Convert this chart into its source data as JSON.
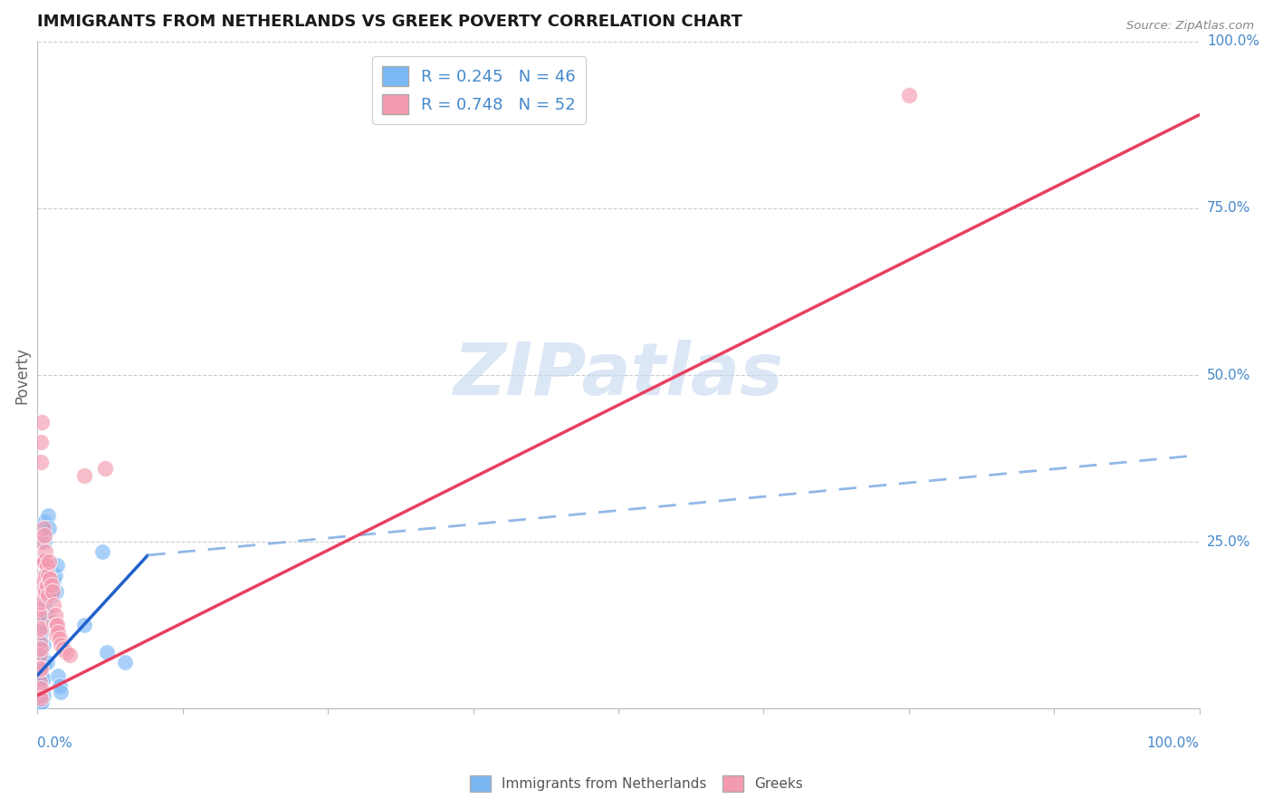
{
  "title": "IMMIGRANTS FROM NETHERLANDS VS GREEK POVERTY CORRELATION CHART",
  "source": "Source: ZipAtlas.com",
  "ylabel": "Poverty",
  "ytick_vals": [
    0.0,
    0.25,
    0.5,
    0.75,
    1.0
  ],
  "ytick_labels": [
    "",
    "25.0%",
    "50.0%",
    "75.0%",
    "100.0%"
  ],
  "xtick_left_label": "0.0%",
  "xtick_right_label": "100.0%",
  "legend_line1": "R = 0.245   N = 46",
  "legend_line2": "R = 0.748   N = 52",
  "legend_label1": "Immigrants from Netherlands",
  "legend_label2": "Greeks",
  "blue_scatter": [
    [
      0.002,
      0.13
    ],
    [
      0.003,
      0.1
    ],
    [
      0.003,
      0.08
    ],
    [
      0.003,
      0.06
    ],
    [
      0.003,
      0.05
    ],
    [
      0.003,
      0.035
    ],
    [
      0.003,
      0.02
    ],
    [
      0.003,
      0.01
    ],
    [
      0.004,
      0.115
    ],
    [
      0.004,
      0.08
    ],
    [
      0.004,
      0.06
    ],
    [
      0.004,
      0.04
    ],
    [
      0.004,
      0.025
    ],
    [
      0.004,
      0.01
    ],
    [
      0.005,
      0.095
    ],
    [
      0.005,
      0.065
    ],
    [
      0.005,
      0.045
    ],
    [
      0.005,
      0.02
    ],
    [
      0.006,
      0.28
    ],
    [
      0.006,
      0.25
    ],
    [
      0.006,
      0.22
    ],
    [
      0.007,
      0.27
    ],
    [
      0.007,
      0.2
    ],
    [
      0.007,
      0.16
    ],
    [
      0.008,
      0.175
    ],
    [
      0.008,
      0.14
    ],
    [
      0.008,
      0.07
    ],
    [
      0.009,
      0.29
    ],
    [
      0.009,
      0.19
    ],
    [
      0.01,
      0.27
    ],
    [
      0.01,
      0.2
    ],
    [
      0.011,
      0.185
    ],
    [
      0.012,
      0.175
    ],
    [
      0.013,
      0.195
    ],
    [
      0.013,
      0.17
    ],
    [
      0.014,
      0.19
    ],
    [
      0.015,
      0.2
    ],
    [
      0.016,
      0.175
    ],
    [
      0.017,
      0.215
    ],
    [
      0.018,
      0.05
    ],
    [
      0.019,
      0.035
    ],
    [
      0.02,
      0.025
    ],
    [
      0.04,
      0.125
    ],
    [
      0.056,
      0.235
    ],
    [
      0.06,
      0.085
    ],
    [
      0.075,
      0.07
    ]
  ],
  "pink_scatter": [
    [
      0.001,
      0.15
    ],
    [
      0.001,
      0.12
    ],
    [
      0.002,
      0.14
    ],
    [
      0.002,
      0.1
    ],
    [
      0.002,
      0.08
    ],
    [
      0.002,
      0.06
    ],
    [
      0.002,
      0.04
    ],
    [
      0.002,
      0.02
    ],
    [
      0.003,
      0.4
    ],
    [
      0.003,
      0.37
    ],
    [
      0.003,
      0.16
    ],
    [
      0.003,
      0.12
    ],
    [
      0.003,
      0.09
    ],
    [
      0.003,
      0.06
    ],
    [
      0.003,
      0.03
    ],
    [
      0.003,
      0.015
    ],
    [
      0.004,
      0.43
    ],
    [
      0.004,
      0.25
    ],
    [
      0.004,
      0.22
    ],
    [
      0.004,
      0.19
    ],
    [
      0.005,
      0.27
    ],
    [
      0.005,
      0.22
    ],
    [
      0.005,
      0.19
    ],
    [
      0.006,
      0.26
    ],
    [
      0.006,
      0.22
    ],
    [
      0.006,
      0.18
    ],
    [
      0.007,
      0.235
    ],
    [
      0.007,
      0.2
    ],
    [
      0.007,
      0.175
    ],
    [
      0.008,
      0.215
    ],
    [
      0.008,
      0.185
    ],
    [
      0.009,
      0.2
    ],
    [
      0.009,
      0.17
    ],
    [
      0.01,
      0.22
    ],
    [
      0.011,
      0.195
    ],
    [
      0.012,
      0.185
    ],
    [
      0.013,
      0.175
    ],
    [
      0.014,
      0.155
    ],
    [
      0.014,
      0.13
    ],
    [
      0.015,
      0.14
    ],
    [
      0.016,
      0.125
    ],
    [
      0.016,
      0.11
    ],
    [
      0.017,
      0.125
    ],
    [
      0.018,
      0.115
    ],
    [
      0.019,
      0.105
    ],
    [
      0.02,
      0.095
    ],
    [
      0.022,
      0.09
    ],
    [
      0.025,
      0.085
    ],
    [
      0.028,
      0.08
    ],
    [
      0.04,
      0.35
    ],
    [
      0.058,
      0.36
    ],
    [
      0.75,
      0.92
    ]
  ],
  "blue_line_solid": {
    "x0": 0.0,
    "y0": 0.05,
    "x1": 0.095,
    "y1": 0.23
  },
  "blue_line_dashed": {
    "x0": 0.0,
    "y0": 0.06,
    "x1": 1.0,
    "y1": 0.38
  },
  "pink_line_solid": {
    "x0": 0.0,
    "y0": 0.02,
    "x1": 1.0,
    "y1": 0.89
  },
  "blue_color": "#7ab8f5",
  "pink_color": "#f49ab0",
  "blue_line_color": "#2060cc",
  "blue_dash_color": "#90b8e8",
  "pink_line_color": "#e84060",
  "text_color_blue": "#4488cc",
  "grid_color": "#cccccc",
  "background_color": "#ffffff",
  "watermark_text": "ZIPatlas",
  "watermark_color": "#c5d8f0",
  "xlim": [
    0.0,
    1.0
  ],
  "ylim": [
    0.0,
    1.0
  ],
  "figsize": [
    14.06,
    8.92
  ],
  "dpi": 100
}
